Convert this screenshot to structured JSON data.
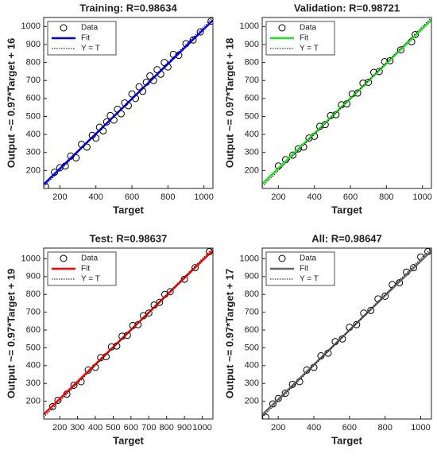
{
  "chart_data": [
    {
      "type": "scatter",
      "title": "Training: R=0.98634",
      "xlabel": "Target",
      "ylabel": "Output ~= 0.97*Target + 16",
      "xlim": [
        110,
        1050
      ],
      "ylim": [
        100,
        1050
      ],
      "xticks": [
        200,
        400,
        600,
        800,
        1000
      ],
      "yticks": [
        200,
        300,
        400,
        500,
        600,
        700,
        800,
        900,
        1000
      ],
      "legend": "upper left",
      "series": [
        {
          "name": "Data",
          "color": "#000000",
          "x": [
            120,
            170,
            200,
            230,
            260,
            290,
            320,
            350,
            380,
            400,
            420,
            440,
            460,
            480,
            500,
            520,
            540,
            560,
            580,
            600,
            620,
            640,
            660,
            680,
            700,
            720,
            740,
            760,
            780,
            800,
            830,
            860,
            900,
            940,
            980,
            1040
          ],
          "values": [
            110,
            190,
            215,
            225,
            280,
            270,
            345,
            330,
            395,
            380,
            440,
            420,
            470,
            505,
            480,
            540,
            515,
            575,
            560,
            625,
            600,
            665,
            640,
            690,
            725,
            700,
            760,
            735,
            800,
            775,
            845,
            840,
            905,
            925,
            970,
            1030
          ]
        },
        {
          "name": "Fit",
          "color": "#0000ff",
          "x": [
            110,
            1050
          ],
          "values": [
            122.7,
            1034.5
          ]
        },
        {
          "name": "Y = T",
          "color": "#000000",
          "x": [
            110,
            1050
          ],
          "values": [
            110,
            1050
          ]
        }
      ]
    },
    {
      "type": "scatter",
      "title": "Validation: R=0.98721",
      "xlabel": "Target",
      "ylabel": "Output ~= 0.97*Target + 18",
      "xlim": [
        110,
        1050
      ],
      "ylim": [
        100,
        1050
      ],
      "xticks": [
        200,
        400,
        600,
        800,
        1000
      ],
      "yticks": [
        200,
        300,
        400,
        500,
        600,
        700,
        800,
        900,
        1000
      ],
      "legend": "upper left",
      "series": [
        {
          "name": "Data",
          "color": "#000000",
          "x": [
            200,
            240,
            280,
            310,
            340,
            370,
            400,
            430,
            460,
            490,
            520,
            550,
            580,
            610,
            640,
            670,
            700,
            730,
            760,
            790,
            820,
            880,
            940,
            960
          ],
          "values": [
            225,
            260,
            285,
            320,
            330,
            380,
            390,
            445,
            455,
            505,
            510,
            565,
            570,
            625,
            630,
            685,
            690,
            745,
            750,
            805,
            810,
            870,
            915,
            955
          ]
        },
        {
          "name": "Fit",
          "color": "#22e022",
          "x": [
            110,
            1050
          ],
          "values": [
            124.7,
            1036.5
          ]
        },
        {
          "name": "Y = T",
          "color": "#000000",
          "x": [
            110,
            1050
          ],
          "values": [
            110,
            1050
          ]
        }
      ]
    },
    {
      "type": "scatter",
      "title": "Test: R=0.98637",
      "xlabel": "Target",
      "ylabel": "Output ~= 0.97*Target + 19",
      "xlim": [
        110,
        1060
      ],
      "ylim": [
        100,
        1060
      ],
      "xticks": [
        200,
        300,
        400,
        500,
        600,
        700,
        800,
        900,
        1000
      ],
      "yticks": [
        200,
        300,
        400,
        500,
        600,
        700,
        800,
        900,
        1000
      ],
      "legend": "upper left",
      "series": [
        {
          "name": "Data",
          "color": "#000000",
          "x": [
            160,
            190,
            240,
            280,
            320,
            360,
            400,
            430,
            460,
            490,
            520,
            550,
            580,
            610,
            640,
            670,
            700,
            730,
            760,
            790,
            820,
            900,
            960,
            1040
          ],
          "values": [
            170,
            205,
            240,
            290,
            310,
            375,
            390,
            445,
            450,
            505,
            510,
            565,
            570,
            625,
            630,
            680,
            695,
            740,
            755,
            800,
            815,
            885,
            950,
            1040
          ]
        },
        {
          "name": "Fit",
          "color": "#ff0000",
          "x": [
            110,
            1060
          ],
          "values": [
            125.7,
            1047.2
          ]
        },
        {
          "name": "Y = T",
          "color": "#000000",
          "x": [
            110,
            1060
          ],
          "values": [
            110,
            1060
          ]
        }
      ]
    },
    {
      "type": "scatter",
      "title": "All: R=0.98647",
      "xlabel": "Target",
      "ylabel": "Output ~= 0.97*Target + 17",
      "xlim": [
        110,
        1060
      ],
      "ylim": [
        100,
        1060
      ],
      "xticks": [
        200,
        400,
        600,
        800,
        1000
      ],
      "yticks": [
        200,
        300,
        400,
        500,
        600,
        700,
        800,
        900,
        1000
      ],
      "legend": "upper left",
      "series": [
        {
          "name": "Data",
          "color": "#000000",
          "x": [
            130,
            170,
            200,
            240,
            280,
            320,
            360,
            400,
            440,
            480,
            520,
            560,
            600,
            640,
            680,
            720,
            760,
            800,
            840,
            880,
            920,
            960,
            1000,
            1040
          ],
          "values": [
            110,
            185,
            215,
            245,
            295,
            310,
            375,
            390,
            455,
            470,
            535,
            550,
            615,
            630,
            695,
            710,
            775,
            790,
            855,
            865,
            925,
            950,
            1010,
            1040
          ]
        },
        {
          "name": "Fit",
          "color": "#666666",
          "x": [
            110,
            1060
          ],
          "values": [
            123.7,
            1045.2
          ]
        },
        {
          "name": "Y = T",
          "color": "#000000",
          "x": [
            110,
            1060
          ],
          "values": [
            110,
            1060
          ]
        }
      ]
    }
  ]
}
